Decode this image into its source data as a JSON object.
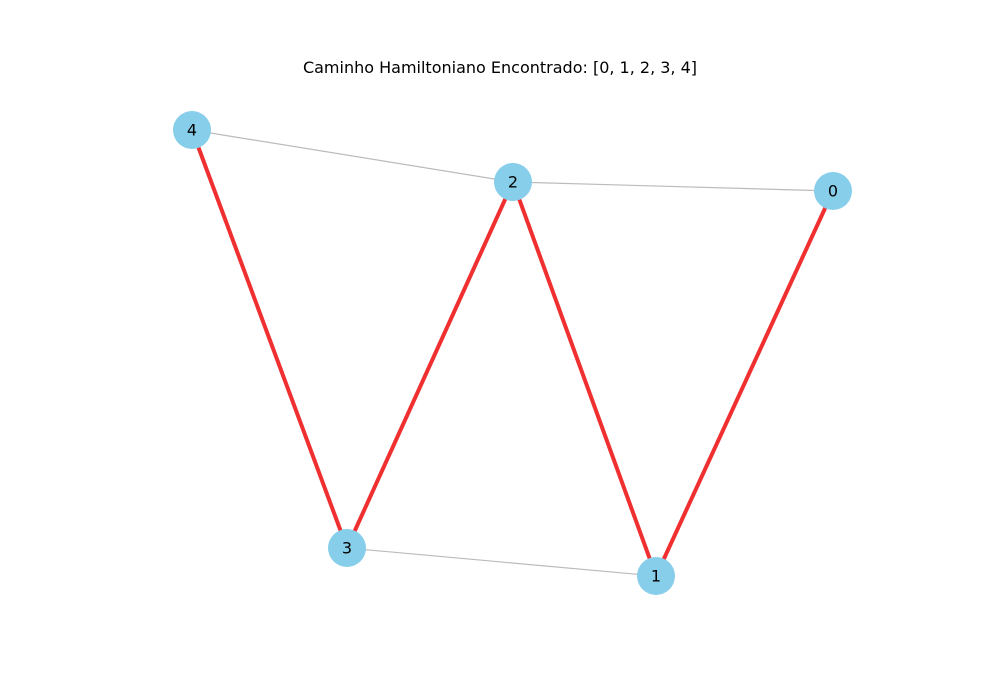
{
  "title": "Caminho Hamiltoniano Encontrado: [0, 1, 2, 3, 4]",
  "colors": {
    "node": "#87ceeb",
    "path_edge": "#f03030",
    "normal_edge": "#bbbbbb",
    "label": "#000000"
  },
  "graph": {
    "nodes": [
      {
        "id": "0",
        "label": "0"
      },
      {
        "id": "1",
        "label": "1"
      },
      {
        "id": "2",
        "label": "2"
      },
      {
        "id": "3",
        "label": "3"
      },
      {
        "id": "4",
        "label": "4"
      }
    ],
    "edges": [
      {
        "source": "4",
        "target": "2",
        "in_path": false
      },
      {
        "source": "2",
        "target": "0",
        "in_path": false
      },
      {
        "source": "3",
        "target": "1",
        "in_path": false
      },
      {
        "source": "0",
        "target": "1",
        "in_path": true
      },
      {
        "source": "1",
        "target": "2",
        "in_path": true
      },
      {
        "source": "2",
        "target": "3",
        "in_path": true
      },
      {
        "source": "3",
        "target": "4",
        "in_path": true
      }
    ],
    "hamiltonian_path": [
      "0",
      "1",
      "2",
      "3",
      "4"
    ]
  }
}
